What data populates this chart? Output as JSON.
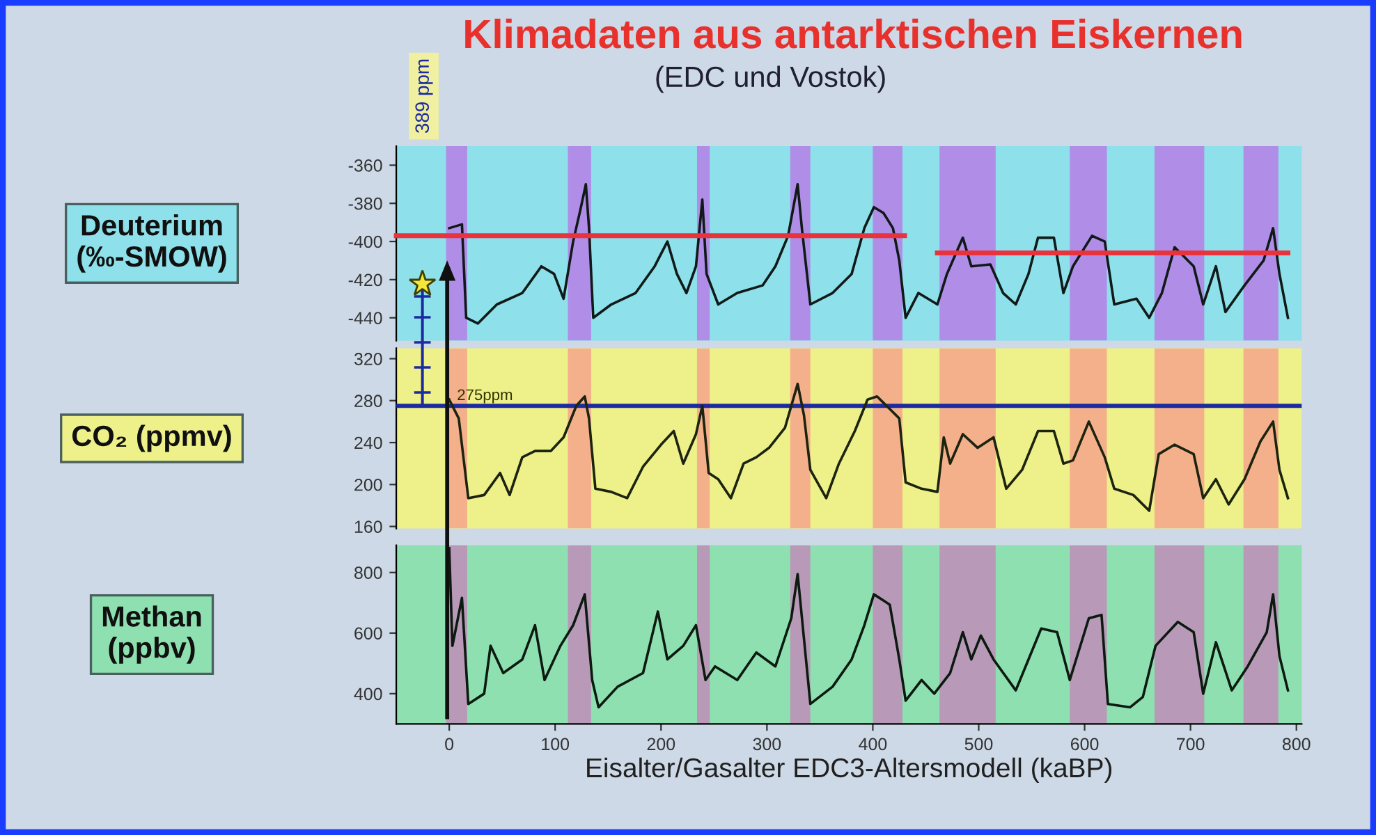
{
  "chart_data": [
    {
      "type": "line",
      "title": "Klimadaten aus antarktischen Eiskernen",
      "subtitle": "(EDC und Vostok)",
      "ylabel": "Deuterium\n(‰-SMOW)",
      "xlim": [
        -50,
        805
      ],
      "ylim": [
        -452,
        -350
      ],
      "yticks": [
        -360,
        -380,
        -400,
        -420,
        -440
      ],
      "tick_labels": "y",
      "annotations": [
        "389 ppm"
      ],
      "bands": [
        {
          "axis": "x",
          "from": -3,
          "to": 17,
          "color": "#b08ee8"
        },
        {
          "axis": "x",
          "from": 112,
          "to": 134,
          "color": "#b08ee8"
        },
        {
          "axis": "x",
          "from": 234,
          "to": 246,
          "color": "#b08ee8"
        },
        {
          "axis": "x",
          "from": 322,
          "to": 341,
          "color": "#b08ee8"
        },
        {
          "axis": "x",
          "from": 400,
          "to": 428,
          "color": "#b08ee8"
        },
        {
          "axis": "x",
          "from": 463,
          "to": 516,
          "color": "#b08ee8"
        },
        {
          "axis": "x",
          "from": 586,
          "to": 621,
          "color": "#b08ee8"
        },
        {
          "axis": "x",
          "from": 666,
          "to": 713,
          "color": "#b08ee8"
        },
        {
          "axis": "x",
          "from": 750,
          "to": 783,
          "color": "#b08ee8"
        }
      ],
      "series": [
        {
          "color": "#101a18",
          "x": [
            0,
            12,
            16,
            27,
            45,
            69,
            87,
            99,
            108,
            117,
            124,
            129,
            132,
            136,
            153,
            176,
            194,
            206,
            215,
            224,
            233,
            239,
            243,
            254,
            272,
            296,
            308,
            320,
            329,
            333,
            341,
            362,
            380,
            392,
            401,
            410,
            419,
            425,
            431,
            443,
            461,
            470,
            485,
            493,
            511,
            523,
            535,
            547,
            556,
            571,
            580,
            589,
            607,
            619,
            628,
            649,
            661,
            673,
            685,
            703,
            712,
            724,
            733,
            751,
            769,
            778,
            784,
            792
          ],
          "values": [
            -393,
            -391,
            -440,
            -443,
            -433,
            -427,
            -413,
            -417,
            -430,
            -400,
            -383,
            -370,
            -393,
            -440,
            -433,
            -427,
            -413,
            -400,
            -417,
            -427,
            -413,
            -378,
            -417,
            -433,
            -427,
            -423,
            -413,
            -397,
            -370,
            -393,
            -433,
            -427,
            -417,
            -393,
            -382,
            -385,
            -393,
            -410,
            -440,
            -427,
            -433,
            -417,
            -398,
            -413,
            -412,
            -427,
            -433,
            -417,
            -398,
            -398,
            -427,
            -413,
            -397,
            -400,
            -433,
            -430,
            -440,
            -427,
            -403,
            -413,
            -433,
            -413,
            -437,
            -423,
            -410,
            -393,
            -417,
            -440
          ]
        },
        {
          "color": "#e8323c",
          "x": [
            -50,
            430
          ],
          "values": [
            -397,
            -397
          ]
        },
        {
          "color": "#e8323c",
          "x": [
            461,
            792
          ],
          "values": [
            -406,
            -406
          ]
        }
      ]
    },
    {
      "type": "line",
      "ylabel": "CO₂ (ppmv)",
      "xlim": [
        -50,
        805
      ],
      "ylim": [
        158,
        330
      ],
      "yticks": [
        320,
        280,
        240,
        200,
        160
      ],
      "tick_labels": "y",
      "ref_lines": [
        {
          "axis": "y",
          "value": 275,
          "label": "275ppm",
          "color": "#1a2aa0"
        }
      ],
      "bands": [
        {
          "axis": "x",
          "from": -3,
          "to": 17,
          "color": "#f4b08a"
        },
        {
          "axis": "x",
          "from": 112,
          "to": 134,
          "color": "#f4b08a"
        },
        {
          "axis": "x",
          "from": 234,
          "to": 246,
          "color": "#f4b08a"
        },
        {
          "axis": "x",
          "from": 322,
          "to": 341,
          "color": "#f4b08a"
        },
        {
          "axis": "x",
          "from": 400,
          "to": 428,
          "color": "#f4b08a"
        },
        {
          "axis": "x",
          "from": 463,
          "to": 516,
          "color": "#f4b08a"
        },
        {
          "axis": "x",
          "from": 586,
          "to": 621,
          "color": "#f4b08a"
        },
        {
          "axis": "x",
          "from": 666,
          "to": 713,
          "color": "#f4b08a"
        },
        {
          "axis": "x",
          "from": 750,
          "to": 783,
          "color": "#f4b08a"
        }
      ],
      "series": [
        {
          "color": "#1c2410",
          "x": [
            0,
            9,
            18,
            33,
            48,
            57,
            69,
            81,
            96,
            108,
            120,
            128,
            132,
            138,
            153,
            168,
            183,
            200,
            212,
            221,
            233,
            239,
            245,
            254,
            266,
            278,
            290,
            302,
            317,
            329,
            335,
            341,
            356,
            368,
            383,
            395,
            404,
            416,
            425,
            431,
            446,
            461,
            467,
            473,
            485,
            499,
            514,
            526,
            541,
            556,
            571,
            580,
            589,
            604,
            619,
            628,
            646,
            661,
            670,
            685,
            703,
            712,
            724,
            736,
            751,
            766,
            778,
            784,
            792
          ],
          "values": [
            281,
            263,
            187,
            190,
            211,
            190,
            226,
            232,
            232,
            245,
            275,
            284,
            263,
            196,
            193,
            187,
            217,
            238,
            251,
            220,
            248,
            275,
            211,
            205,
            187,
            220,
            226,
            235,
            254,
            296,
            266,
            214,
            187,
            220,
            251,
            281,
            284,
            272,
            263,
            202,
            196,
            193,
            245,
            220,
            248,
            235,
            245,
            196,
            214,
            251,
            251,
            220,
            223,
            260,
            226,
            196,
            190,
            175,
            229,
            238,
            229,
            187,
            205,
            181,
            205,
            241,
            260,
            214,
            187
          ]
        }
      ]
    },
    {
      "type": "line",
      "ylabel": "Methan\n(ppbv)",
      "xlabel": "Eisalter/Gasalter EDC3-Altersmodell (kaBP)",
      "xlim": [
        -50,
        805
      ],
      "xticks": [
        0,
        100,
        200,
        300,
        400,
        500,
        600,
        700,
        800
      ],
      "ylim": [
        300,
        890
      ],
      "yticks": [
        800,
        600,
        400
      ],
      "bands": [
        {
          "axis": "x",
          "from": -3,
          "to": 17,
          "color": "#b89ab8"
        },
        {
          "axis": "x",
          "from": 112,
          "to": 134,
          "color": "#b89ab8"
        },
        {
          "axis": "x",
          "from": 234,
          "to": 246,
          "color": "#b89ab8"
        },
        {
          "axis": "x",
          "from": 322,
          "to": 341,
          "color": "#b89ab8"
        },
        {
          "axis": "x",
          "from": 400,
          "to": 428,
          "color": "#b89ab8"
        },
        {
          "axis": "x",
          "from": 463,
          "to": 516,
          "color": "#b89ab8"
        },
        {
          "axis": "x",
          "from": 586,
          "to": 621,
          "color": "#b89ab8"
        },
        {
          "axis": "x",
          "from": 666,
          "to": 713,
          "color": "#b89ab8"
        },
        {
          "axis": "x",
          "from": 750,
          "to": 783,
          "color": "#b89ab8"
        }
      ],
      "series": [
        {
          "color": "#0c1a10",
          "x": [
            0,
            3,
            12,
            18,
            33,
            39,
            51,
            69,
            81,
            90,
            105,
            117,
            128,
            135,
            141,
            159,
            183,
            197,
            206,
            221,
            233,
            242,
            251,
            272,
            290,
            308,
            323,
            329,
            335,
            341,
            362,
            380,
            392,
            401,
            416,
            425,
            431,
            446,
            458,
            473,
            485,
            493,
            502,
            514,
            535,
            547,
            559,
            574,
            586,
            604,
            616,
            622,
            643,
            655,
            667,
            688,
            703,
            712,
            724,
            739,
            754,
            772,
            778,
            784,
            792
          ],
          "values": [
            880,
            558,
            716,
            366,
            400,
            558,
            468,
            513,
            626,
            445,
            558,
            626,
            728,
            445,
            355,
            423,
            468,
            671,
            513,
            558,
            626,
            445,
            490,
            445,
            536,
            490,
            649,
            795,
            581,
            366,
            423,
            513,
            626,
            728,
            694,
            513,
            377,
            445,
            400,
            468,
            603,
            513,
            592,
            513,
            411,
            513,
            615,
            603,
            445,
            649,
            660,
            366,
            355,
            389,
            558,
            637,
            603,
            400,
            570,
            411,
            490,
            603,
            728,
            524,
            411
          ]
        }
      ]
    }
  ]
}
